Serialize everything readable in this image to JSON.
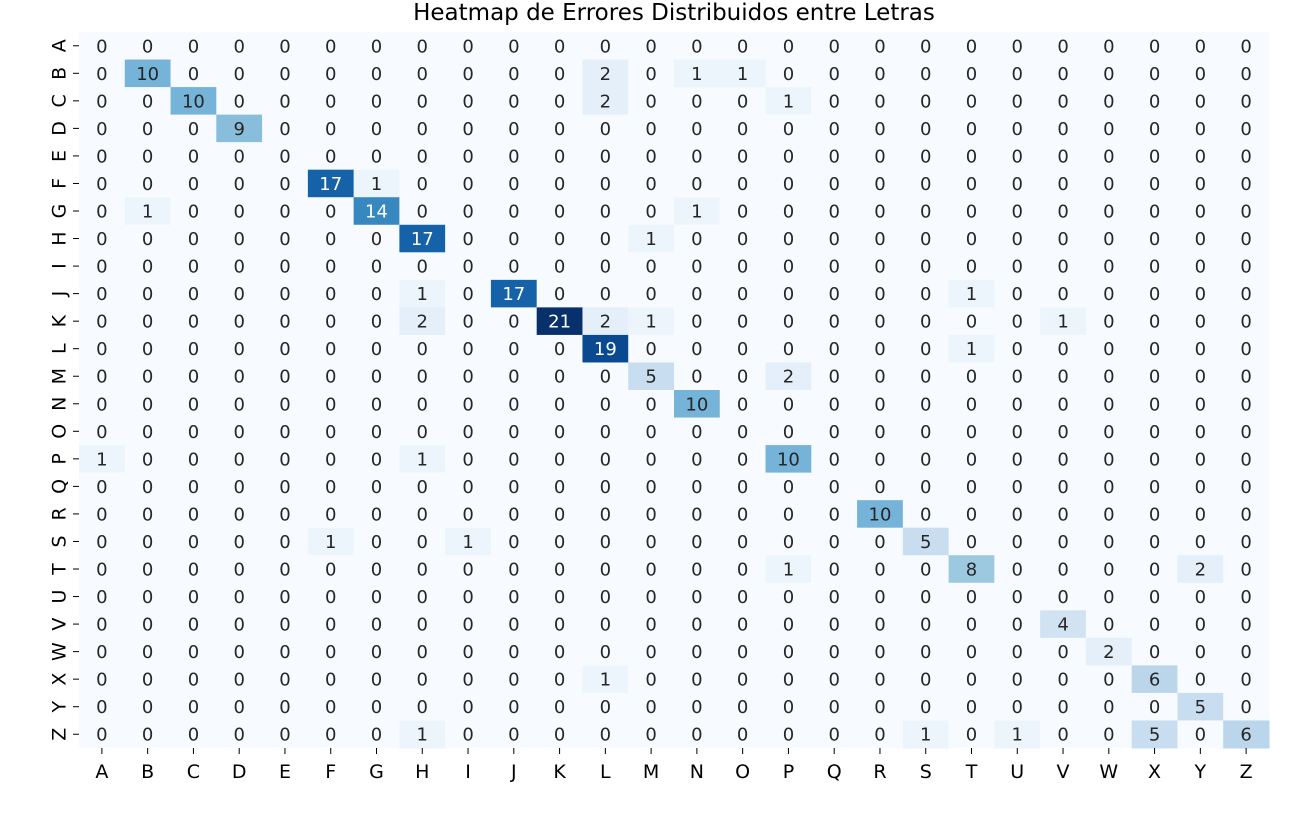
{
  "chart_data": {
    "type": "heatmap",
    "title": "Heatmap de Errores Distribuidos entre Letras",
    "xlabel": "",
    "ylabel": "",
    "x_labels": [
      "A",
      "B",
      "C",
      "D",
      "E",
      "F",
      "G",
      "H",
      "I",
      "J",
      "K",
      "L",
      "M",
      "N",
      "O",
      "P",
      "Q",
      "R",
      "S",
      "T",
      "U",
      "V",
      "W",
      "X",
      "Y",
      "Z"
    ],
    "y_labels": [
      "A",
      "B",
      "C",
      "D",
      "E",
      "F",
      "G",
      "H",
      "I",
      "J",
      "K",
      "L",
      "M",
      "N",
      "O",
      "P",
      "Q",
      "R",
      "S",
      "T",
      "U",
      "V",
      "W",
      "X",
      "Y",
      "Z"
    ],
    "colormap": "Blues",
    "vmin": 0,
    "vmax": 21,
    "colorbar": false,
    "values": [
      [
        0,
        0,
        0,
        0,
        0,
        0,
        0,
        0,
        0,
        0,
        0,
        0,
        0,
        0,
        0,
        0,
        0,
        0,
        0,
        0,
        0,
        0,
        0,
        0,
        0,
        0
      ],
      [
        0,
        10,
        0,
        0,
        0,
        0,
        0,
        0,
        0,
        0,
        0,
        2,
        0,
        1,
        1,
        0,
        0,
        0,
        0,
        0,
        0,
        0,
        0,
        0,
        0,
        0
      ],
      [
        0,
        0,
        10,
        0,
        0,
        0,
        0,
        0,
        0,
        0,
        0,
        2,
        0,
        0,
        0,
        1,
        0,
        0,
        0,
        0,
        0,
        0,
        0,
        0,
        0,
        0
      ],
      [
        0,
        0,
        0,
        9,
        0,
        0,
        0,
        0,
        0,
        0,
        0,
        0,
        0,
        0,
        0,
        0,
        0,
        0,
        0,
        0,
        0,
        0,
        0,
        0,
        0,
        0
      ],
      [
        0,
        0,
        0,
        0,
        0,
        0,
        0,
        0,
        0,
        0,
        0,
        0,
        0,
        0,
        0,
        0,
        0,
        0,
        0,
        0,
        0,
        0,
        0,
        0,
        0,
        0
      ],
      [
        0,
        0,
        0,
        0,
        0,
        17,
        1,
        0,
        0,
        0,
        0,
        0,
        0,
        0,
        0,
        0,
        0,
        0,
        0,
        0,
        0,
        0,
        0,
        0,
        0,
        0
      ],
      [
        0,
        1,
        0,
        0,
        0,
        0,
        14,
        0,
        0,
        0,
        0,
        0,
        0,
        1,
        0,
        0,
        0,
        0,
        0,
        0,
        0,
        0,
        0,
        0,
        0,
        0
      ],
      [
        0,
        0,
        0,
        0,
        0,
        0,
        0,
        17,
        0,
        0,
        0,
        0,
        1,
        0,
        0,
        0,
        0,
        0,
        0,
        0,
        0,
        0,
        0,
        0,
        0,
        0
      ],
      [
        0,
        0,
        0,
        0,
        0,
        0,
        0,
        0,
        0,
        0,
        0,
        0,
        0,
        0,
        0,
        0,
        0,
        0,
        0,
        0,
        0,
        0,
        0,
        0,
        0,
        0
      ],
      [
        0,
        0,
        0,
        0,
        0,
        0,
        0,
        1,
        0,
        17,
        0,
        0,
        0,
        0,
        0,
        0,
        0,
        0,
        0,
        1,
        0,
        0,
        0,
        0,
        0,
        0
      ],
      [
        0,
        0,
        0,
        0,
        0,
        0,
        0,
        2,
        0,
        0,
        21,
        2,
        1,
        0,
        0,
        0,
        0,
        0,
        0,
        0,
        0,
        1,
        0,
        0,
        0,
        0
      ],
      [
        0,
        0,
        0,
        0,
        0,
        0,
        0,
        0,
        0,
        0,
        0,
        19,
        0,
        0,
        0,
        0,
        0,
        0,
        0,
        1,
        0,
        0,
        0,
        0,
        0,
        0
      ],
      [
        0,
        0,
        0,
        0,
        0,
        0,
        0,
        0,
        0,
        0,
        0,
        0,
        5,
        0,
        0,
        2,
        0,
        0,
        0,
        0,
        0,
        0,
        0,
        0,
        0,
        0
      ],
      [
        0,
        0,
        0,
        0,
        0,
        0,
        0,
        0,
        0,
        0,
        0,
        0,
        0,
        10,
        0,
        0,
        0,
        0,
        0,
        0,
        0,
        0,
        0,
        0,
        0,
        0
      ],
      [
        0,
        0,
        0,
        0,
        0,
        0,
        0,
        0,
        0,
        0,
        0,
        0,
        0,
        0,
        0,
        0,
        0,
        0,
        0,
        0,
        0,
        0,
        0,
        0,
        0,
        0
      ],
      [
        1,
        0,
        0,
        0,
        0,
        0,
        0,
        1,
        0,
        0,
        0,
        0,
        0,
        0,
        0,
        10,
        0,
        0,
        0,
        0,
        0,
        0,
        0,
        0,
        0,
        0
      ],
      [
        0,
        0,
        0,
        0,
        0,
        0,
        0,
        0,
        0,
        0,
        0,
        0,
        0,
        0,
        0,
        0,
        0,
        0,
        0,
        0,
        0,
        0,
        0,
        0,
        0,
        0
      ],
      [
        0,
        0,
        0,
        0,
        0,
        0,
        0,
        0,
        0,
        0,
        0,
        0,
        0,
        0,
        0,
        0,
        0,
        10,
        0,
        0,
        0,
        0,
        0,
        0,
        0,
        0
      ],
      [
        0,
        0,
        0,
        0,
        0,
        1,
        0,
        0,
        1,
        0,
        0,
        0,
        0,
        0,
        0,
        0,
        0,
        0,
        5,
        0,
        0,
        0,
        0,
        0,
        0,
        0
      ],
      [
        0,
        0,
        0,
        0,
        0,
        0,
        0,
        0,
        0,
        0,
        0,
        0,
        0,
        0,
        0,
        1,
        0,
        0,
        0,
        8,
        0,
        0,
        0,
        0,
        2,
        0
      ],
      [
        0,
        0,
        0,
        0,
        0,
        0,
        0,
        0,
        0,
        0,
        0,
        0,
        0,
        0,
        0,
        0,
        0,
        0,
        0,
        0,
        0,
        0,
        0,
        0,
        0,
        0
      ],
      [
        0,
        0,
        0,
        0,
        0,
        0,
        0,
        0,
        0,
        0,
        0,
        0,
        0,
        0,
        0,
        0,
        0,
        0,
        0,
        0,
        0,
        4,
        0,
        0,
        0,
        0
      ],
      [
        0,
        0,
        0,
        0,
        0,
        0,
        0,
        0,
        0,
        0,
        0,
        0,
        0,
        0,
        0,
        0,
        0,
        0,
        0,
        0,
        0,
        0,
        2,
        0,
        0,
        0
      ],
      [
        0,
        0,
        0,
        0,
        0,
        0,
        0,
        0,
        0,
        0,
        0,
        1,
        0,
        0,
        0,
        0,
        0,
        0,
        0,
        0,
        0,
        0,
        0,
        6,
        0,
        0
      ],
      [
        0,
        0,
        0,
        0,
        0,
        0,
        0,
        0,
        0,
        0,
        0,
        0,
        0,
        0,
        0,
        0,
        0,
        0,
        0,
        0,
        0,
        0,
        0,
        0,
        5,
        0
      ],
      [
        0,
        0,
        0,
        0,
        0,
        0,
        0,
        1,
        0,
        0,
        0,
        0,
        0,
        0,
        0,
        0,
        0,
        0,
        1,
        0,
        1,
        0,
        0,
        5,
        0,
        6
      ]
    ]
  }
}
